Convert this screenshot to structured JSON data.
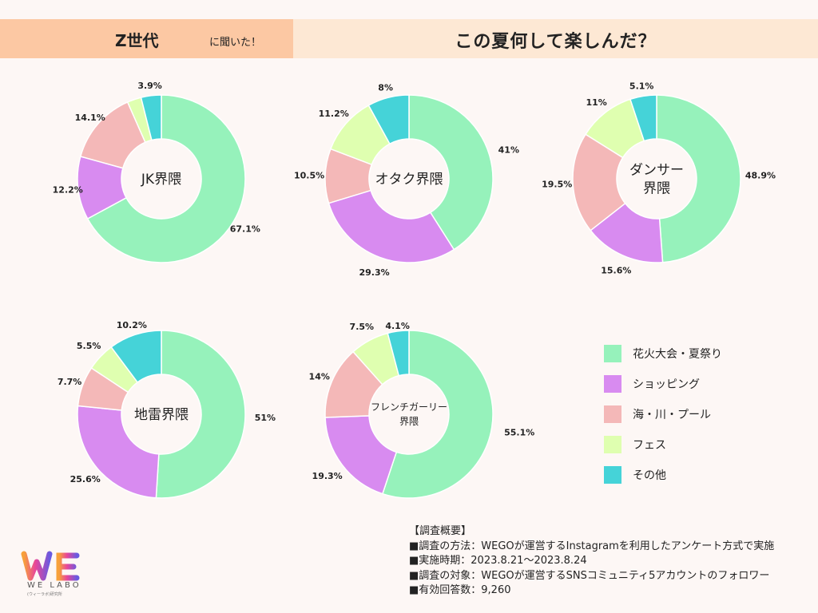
{
  "header": {
    "generation": "Z世代",
    "asked": "に聞いた！",
    "question": "この夏何して楽しんだ？"
  },
  "colors": {
    "header_left": "#fcc8a3",
    "header_right": "#fde8d4",
    "categories": [
      "#96f2bb",
      "#d88bf0",
      "#f4b8b8",
      "#dfffb0",
      "#45d3d8"
    ]
  },
  "legend": [
    "花火大会・夏祭り",
    "ショッピング",
    "海・川・プール",
    "フェス",
    "その他"
  ],
  "chart_data": [
    {
      "type": "pie",
      "title": "JK界隈",
      "categories": [
        "花火大会・夏祭り",
        "ショッピング",
        "海・川・プール",
        "フェス",
        "その他"
      ],
      "values": [
        67.1,
        12.2,
        14.1,
        2.7,
        3.9
      ],
      "labels": [
        "67.1%",
        "12.2%",
        "14.1%",
        "",
        "3.9%"
      ]
    },
    {
      "type": "pie",
      "title": "オタク界隈",
      "categories": [
        "花火大会・夏祭り",
        "ショッピング",
        "海・川・プール",
        "フェス",
        "その他"
      ],
      "values": [
        41,
        29.3,
        10.5,
        11.2,
        8
      ],
      "labels": [
        "41%",
        "29.3%",
        "10.5%",
        "11.2%",
        "8%"
      ]
    },
    {
      "type": "pie",
      "title": "ダンサー界隈",
      "title_lines": [
        "ダンサー",
        "界隈"
      ],
      "categories": [
        "花火大会・夏祭り",
        "ショッピング",
        "海・川・プール",
        "フェス",
        "その他"
      ],
      "values": [
        48.9,
        15.6,
        19.5,
        11,
        5.1
      ],
      "labels": [
        "48.9%",
        "15.6%",
        "19.5%",
        "11%",
        "5.1%"
      ]
    },
    {
      "type": "pie",
      "title": "地雷界隈",
      "categories": [
        "花火大会・夏祭り",
        "ショッピング",
        "海・川・プール",
        "フェス",
        "その他"
      ],
      "values": [
        51,
        25.6,
        7.7,
        5.5,
        10.2
      ],
      "labels": [
        "51%",
        "25.6%",
        "7.7%",
        "5.5%",
        "10.2%"
      ]
    },
    {
      "type": "pie",
      "title": "フレンチガーリー界隈",
      "title_lines": [
        "フレンチガーリー",
        "界隈"
      ],
      "categories": [
        "花火大会・夏祭り",
        "ショッピング",
        "海・川・プール",
        "フェス",
        "その他"
      ],
      "values": [
        55.1,
        19.3,
        14,
        7.5,
        4.1
      ],
      "labels": [
        "55.1%",
        "19.3%",
        "14%",
        "7.5%",
        "4.1%"
      ]
    }
  ],
  "survey": {
    "heading": "【調査概要】",
    "method": "■調査の方法：WEGOが運営するInstagramを利用したアンケート方式で実施",
    "period": "■実施時期：2023.8.21～2023.8.24",
    "target": "■調査の対象：WEGOが運営するSNSコミュニティ5アカウントのフォロワー",
    "responses": "■有効回答数：9,260"
  },
  "logo": {
    "brand": "WE LABO",
    "sub": "(ウィーラボ)研究所"
  }
}
